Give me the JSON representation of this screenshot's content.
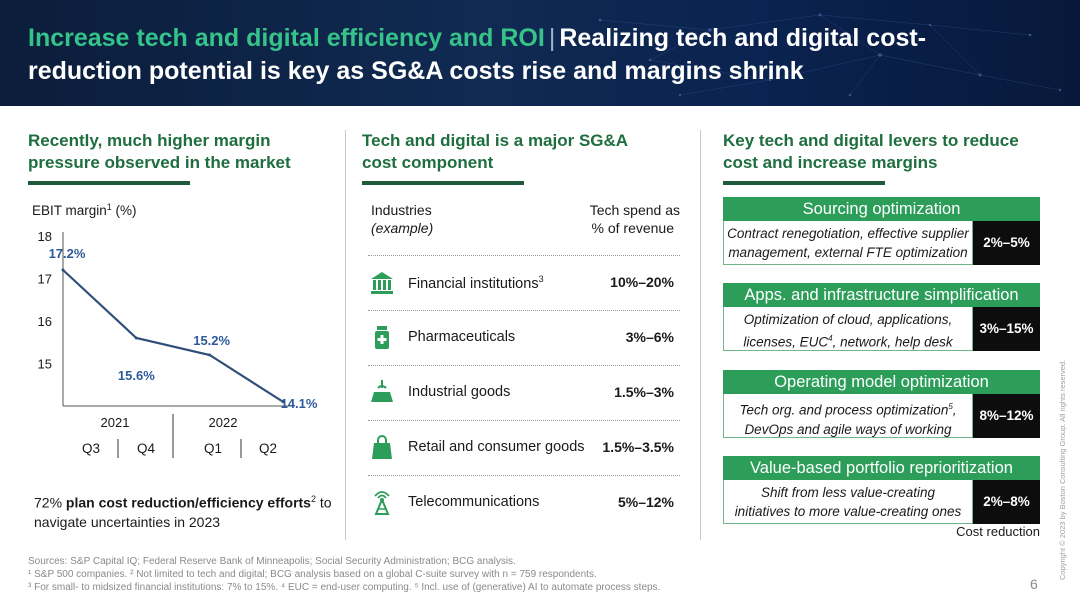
{
  "header": {
    "title_accent": "Increase tech and digital efficiency and ROI",
    "separator": "|",
    "title_main": "Realizing tech and digital cost-reduction potential is key as SG&A costs rise and margins shrink"
  },
  "left": {
    "heading": "Recently, much higher margin pressure observed in the market",
    "kpi_prefix": "72% ",
    "kpi_bold": "plan cost reduction/efficiency efforts",
    "kpi_sup": "2",
    "kpi_suffix": " to navigate uncertainties in 2023"
  },
  "chart_data": {
    "type": "line",
    "ylabel": "EBIT margin",
    "ylabel_sup": "1",
    "ylabel_unit": " (%)",
    "ylim": [
      14,
      18
    ],
    "yticks": [
      "18",
      "17",
      "16",
      "15"
    ],
    "categories": [
      "Q3",
      "Q4",
      "Q1",
      "Q2"
    ],
    "years": [
      "2021",
      "2022"
    ],
    "values": [
      17.2,
      15.6,
      15.2,
      14.1
    ],
    "data_labels": [
      "17.2%",
      "15.6%",
      "15.2%",
      "14.1%"
    ],
    "grid": false,
    "color": "#2f4f7a",
    "label_color": "#2d5a9a"
  },
  "middle": {
    "heading": "Tech and digital is a major SG&A cost component",
    "col1_line1": "Industries",
    "col1_line2": "(example)",
    "col2_line1": "Tech spend as",
    "col2_line2": "% of revenue",
    "rows": [
      {
        "name": "Financial institutions",
        "sup": "3",
        "value": "10%–20%",
        "icon": "bank-icon"
      },
      {
        "name": "Pharmaceuticals",
        "sup": "",
        "value": "3%–6%",
        "icon": "pill-bottle-icon"
      },
      {
        "name": "Industrial goods",
        "sup": "",
        "value": "1.5%–3%",
        "icon": "crane-box-icon"
      },
      {
        "name": "Retail and consumer goods",
        "sup": "",
        "value": "1.5%–3.5%",
        "icon": "shopping-bag-icon"
      },
      {
        "name": "Telecommunications",
        "sup": "",
        "value": "5%–12%",
        "icon": "antenna-tower-icon"
      }
    ]
  },
  "right": {
    "heading": "Key tech and digital levers to reduce cost and increase margins",
    "levers": [
      {
        "title": "Sourcing optimization",
        "desc_1": "Contract renegotiation, effective supplier",
        "desc_2": "management, external FTE optimization",
        "value": "2%–5%"
      },
      {
        "title": "Apps. and infrastructure simplification",
        "desc_1": "Optimization of cloud, applications,",
        "desc_2": "licenses, EUC",
        "desc_2_sup": "4",
        "desc_2_tail": ", network, help desk",
        "value": "3%–15%"
      },
      {
        "title": "Operating model optimization",
        "desc_1": "Tech org. and process optimization",
        "desc_1_sup": "5",
        "desc_1_tail": ",",
        "desc_2": "DevOps and agile ways of working",
        "value": "8%–12%"
      },
      {
        "title": "Value-based portfolio reprioritization",
        "desc_1": "Shift from less value-creating",
        "desc_2": "initiatives to more value-creating ones",
        "value": "2%–8%"
      }
    ],
    "cost_reduction_label": "Cost reduction"
  },
  "footer": {
    "sources": "Sources: S&P Capital IQ; Federal Reserve Bank of Minneapolis; Social Security Administration; BCG analysis.",
    "note1": "¹ S&P 500 companies.   ² Not limited to tech and digital; BCG analysis based on a global C-suite survey with n = 759 respondents.",
    "note2": "³ For small- to midsized financial institutions: 7% to 15%.   ⁴ EUC = end-user computing.   ⁵ Incl. use of (generative) AI to automate process steps.",
    "page": "6",
    "copyright": "Copyright © 2023 by Boston Consulting Group. All rights reserved."
  },
  "colors": {
    "accent_green": "#35c38a",
    "heading_green": "#1f6e3f",
    "lever_green": "#2c9e5a",
    "banner_navy": "#0b1d3a"
  }
}
